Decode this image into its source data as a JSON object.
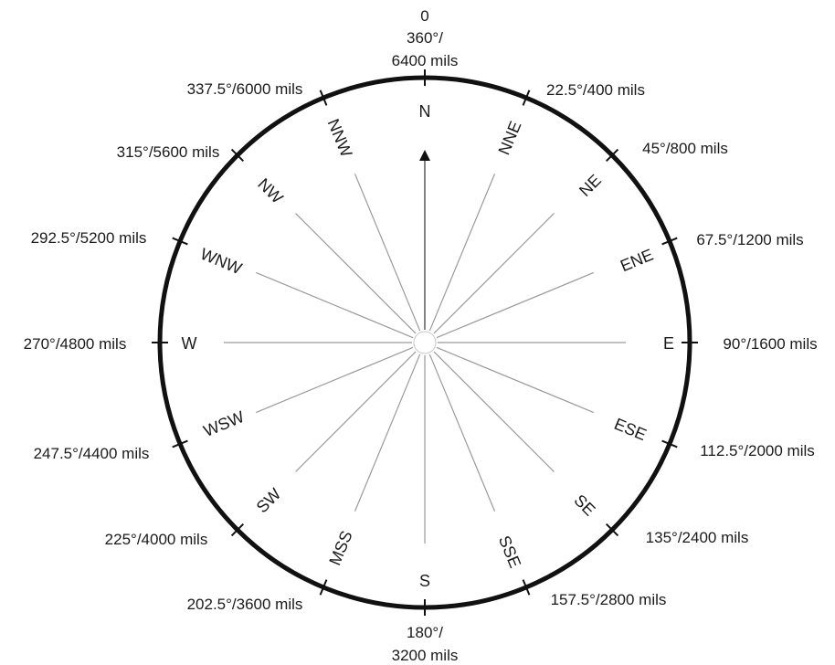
{
  "top_label": [
    "0",
    "360°/",
    "6400 mils"
  ],
  "bottom_label": [
    "180°/",
    "3200 mils"
  ],
  "outer_labels": [
    "22.5°/400 mils",
    "45°/800 mils",
    "67.5°/1200 mils",
    "90°/1600 mils",
    "112.5°/2000 mils",
    "135°/2400 mils",
    "157.5°/2800 mils",
    "202.5°/3600 mils",
    "225°/4000 mils",
    "247.5°/4400 mils",
    "270°/4800 mils",
    "292.5°/5200 mils",
    "315°/5600 mils",
    "337.5°/6000 mils"
  ],
  "directions": [
    "N",
    "NNE",
    "NE",
    "ENE",
    "E",
    "ESE",
    "SE",
    "SSE",
    "S",
    "MSS",
    "SW",
    "WSW",
    "W",
    "WNW",
    "NW",
    "NNW"
  ],
  "colors": {
    "ring": "#111111",
    "spoke": "#9a9a9a",
    "text": "#1a1a1a"
  }
}
